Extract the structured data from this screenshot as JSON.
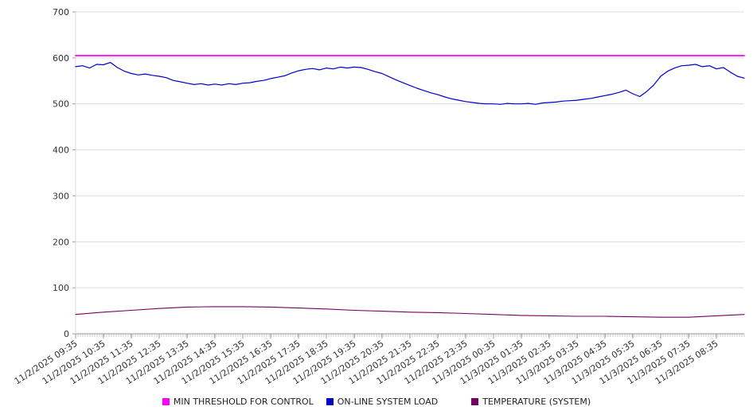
{
  "page": {
    "background": "#ffffff"
  },
  "chart_data": {
    "type": "line",
    "title": "",
    "xlabel": "",
    "ylabel": "",
    "ylim": [
      0,
      700
    ],
    "y_ticks": [
      0,
      100,
      200,
      300,
      400,
      500,
      600,
      700
    ],
    "grid": true,
    "legend_position": "bottom",
    "axis_colors": {
      "grid": "#dcdcdc",
      "axis": "#999999",
      "minor_tick": "#aaaaaa",
      "text": "#333333"
    },
    "x_tick_labels": [
      "11/2/2025 09:35",
      "11/2/2025 10:35",
      "11/2/2025 11:35",
      "11/2/2025 12:35",
      "11/2/2025 13:35",
      "11/2/2025 14:35",
      "11/2/2025 15:35",
      "11/2/2025 16:35",
      "11/2/2025 17:35",
      "11/2/2025 18:35",
      "11/2/2025 19:35",
      "11/2/2025 20:35",
      "11/2/2025 21:35",
      "11/2/2025 22:35",
      "11/2/2025 23:35",
      "11/3/2025 00:35",
      "11/3/2025 01:35",
      "11/3/2025 02:35",
      "11/3/2025 03:35",
      "11/3/2025 04:35",
      "11/3/2025 05:35",
      "11/3/2025 06:35",
      "11/3/2025 07:35",
      "11/3/2025 08:35"
    ],
    "series": [
      {
        "name": "MIN THRESHOLD FOR CONTROL",
        "color": "#ff00ff",
        "values": [
          605,
          605
        ]
      },
      {
        "name": "ON-LINE SYSTEM LOAD",
        "color": "#0000cd",
        "values": [
          581,
          583,
          578,
          586,
          585,
          590,
          579,
          571,
          566,
          563,
          565,
          562,
          560,
          557,
          551,
          548,
          545,
          542,
          544,
          541,
          543,
          541,
          544,
          542,
          545,
          546,
          549,
          551,
          555,
          558,
          561,
          567,
          572,
          575,
          577,
          574,
          578,
          576,
          580,
          578,
          580,
          579,
          575,
          570,
          566,
          559,
          552,
          546,
          540,
          534,
          529,
          524,
          520,
          515,
          511,
          508,
          505,
          503,
          501,
          500,
          500,
          499,
          501,
          500,
          500,
          501,
          499,
          502,
          503,
          504,
          506,
          507,
          508,
          510,
          512,
          515,
          518,
          521,
          525,
          530,
          522,
          516,
          527,
          541,
          560,
          571,
          578,
          583,
          584,
          586,
          581,
          583,
          576,
          579,
          569,
          560,
          556
        ]
      },
      {
        "name": "TEMPERATURE (SYSTEM)",
        "color": "#750062",
        "values": [
          42,
          47,
          51,
          55,
          58,
          59,
          59,
          58,
          56,
          54,
          51,
          49,
          47,
          46,
          44,
          42,
          40,
          39,
          38,
          38,
          37,
          36,
          36,
          39,
          42
        ]
      }
    ]
  }
}
